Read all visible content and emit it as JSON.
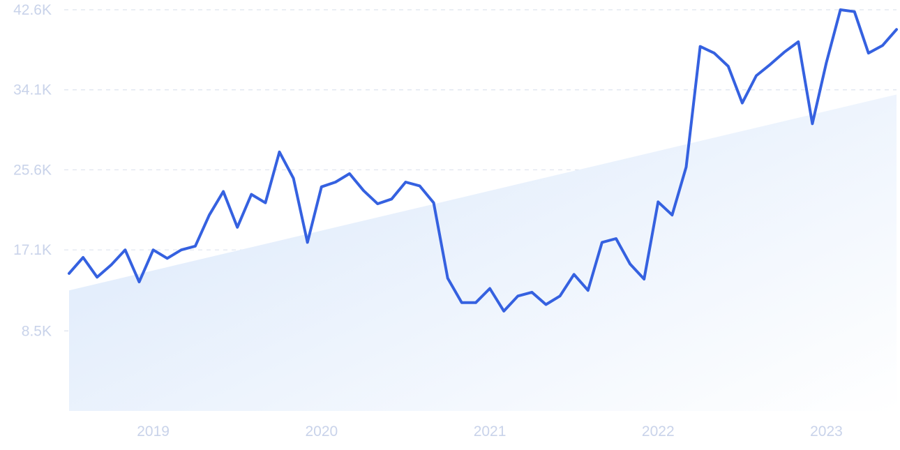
{
  "chart_data": {
    "type": "line",
    "title": "",
    "xlabel": "",
    "ylabel": "",
    "y_ticks": [
      8500,
      17100,
      25600,
      34100,
      42600
    ],
    "y_tick_labels": [
      "8.5K",
      "17.1K",
      "25.6K",
      "34.1K",
      "42.6K"
    ],
    "ylim": [
      0,
      42600
    ],
    "x_ticks": [
      "2019",
      "2020",
      "2021",
      "2022",
      "2023"
    ],
    "xlim": [
      "2018-07",
      "2023-06"
    ],
    "grid": true,
    "series": [
      {
        "values": [
          14600,
          16300,
          14200,
          15500,
          17100,
          13700,
          17100,
          16200,
          17100,
          17500,
          20800,
          23300,
          19500,
          23000,
          22100,
          27500,
          24700,
          17900,
          23800,
          24300,
          25200,
          23400,
          22000,
          22500,
          24300,
          23900,
          22100,
          14100,
          11500,
          11500,
          13000,
          10600,
          12200,
          12600,
          11300,
          12200,
          14500,
          12800,
          17900,
          18300,
          15600,
          14000,
          22200,
          20800,
          25900,
          38700,
          38000,
          36600,
          32700,
          35600,
          36800,
          38100,
          39200,
          30500,
          37000,
          42600,
          42400,
          38000,
          38800,
          40500
        ]
      }
    ],
    "trend": {
      "start": 12800,
      "end": 33600
    },
    "colors": {
      "line": "#3561e0",
      "trend_fill_start": "#dce9fb",
      "trend_fill_end": "#ffffff",
      "grid": "#dde3ee",
      "tick_text": "#c9d3ea"
    }
  }
}
